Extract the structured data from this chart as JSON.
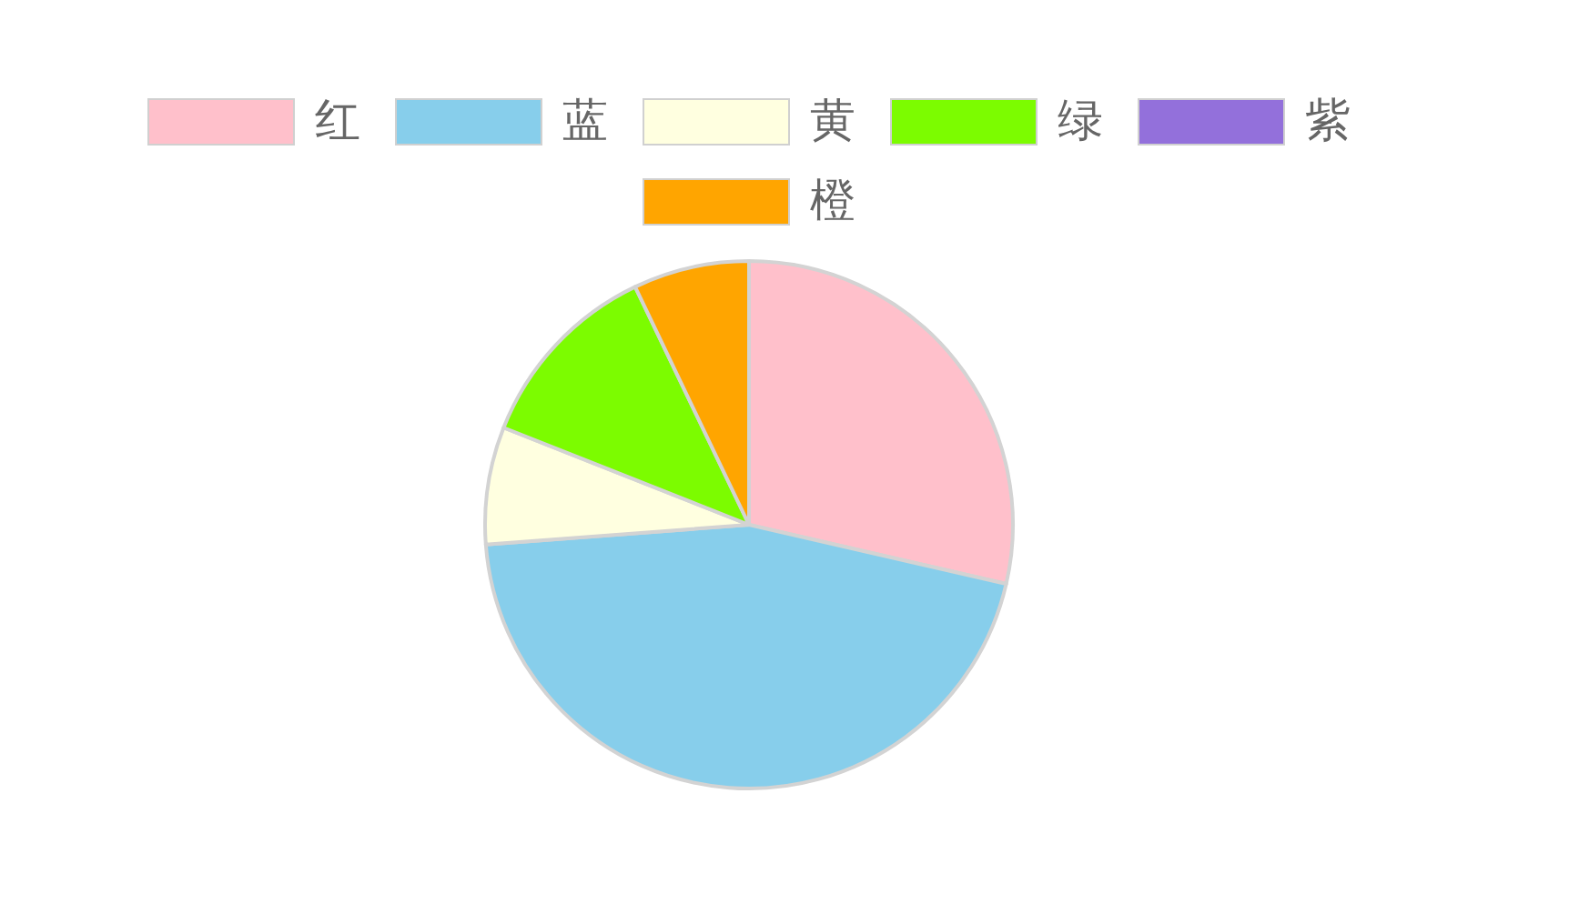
{
  "chart_data": {
    "type": "pie",
    "categories": [
      "红",
      "蓝",
      "黄",
      "绿",
      "紫",
      "橙"
    ],
    "values": [
      28.6,
      45.2,
      7.2,
      11.9,
      0,
      7.1
    ],
    "colors": [
      "#ffc0cb",
      "#87ceeb",
      "#ffffe0",
      "#7cfc00",
      "#9370db",
      "#ffa500"
    ],
    "legend": "top"
  }
}
